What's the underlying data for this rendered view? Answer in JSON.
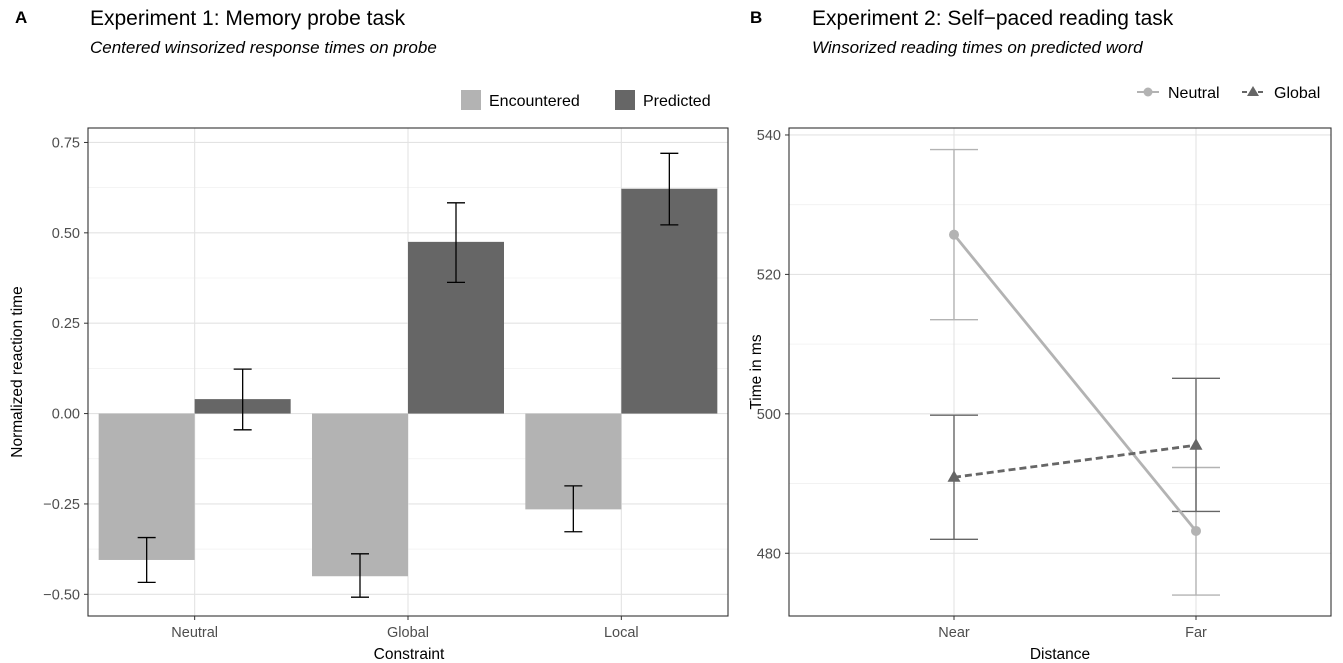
{
  "chart_data": [
    {
      "panel": "A",
      "type": "bar",
      "title": "Experiment 1: Memory probe task",
      "subtitle": "Centered winsorized response times on probe",
      "xlabel": "Constraint",
      "ylabel": "Normalized reaction time",
      "categories": [
        "Neutral",
        "Global",
        "Local"
      ],
      "ylim": [
        -0.56,
        0.79
      ],
      "yticks": [
        -0.5,
        -0.25,
        0.0,
        0.25,
        0.5,
        0.75
      ],
      "ytick_labels": [
        "−0.50",
        "−0.25",
        "0.00",
        "0.25",
        "0.50",
        "0.75"
      ],
      "grid": true,
      "legend_position": "top-right",
      "series": [
        {
          "name": "Encountered",
          "color": "#b3b3b3",
          "values": [
            -0.405,
            -0.45,
            -0.265
          ],
          "err_low": [
            -0.467,
            -0.508,
            -0.327
          ],
          "err_high": [
            -0.343,
            -0.388,
            -0.2
          ]
        },
        {
          "name": "Predicted",
          "color": "#666666",
          "values": [
            0.04,
            0.475,
            0.622
          ],
          "err_low": [
            -0.045,
            0.363,
            0.522
          ],
          "err_high": [
            0.123,
            0.583,
            0.72
          ]
        }
      ]
    },
    {
      "panel": "B",
      "type": "line",
      "title": "Experiment 2: Self−paced reading task",
      "subtitle": "Winsorized reading times on predicted word",
      "xlabel": "Distance",
      "ylabel": "Time in ms",
      "categories": [
        "Near",
        "Far"
      ],
      "ylim": [
        471,
        541
      ],
      "yticks": [
        480,
        500,
        520,
        540
      ],
      "ytick_labels": [
        "480",
        "500",
        "520",
        "540"
      ],
      "grid": true,
      "legend_position": "top-right",
      "series": [
        {
          "name": "Neutral",
          "marker": "circle",
          "linestyle": "solid",
          "color": "#b3b3b3",
          "values": [
            525.7,
            483.2
          ],
          "err_low": [
            513.5,
            474.0
          ],
          "err_high": [
            537.9,
            492.3
          ]
        },
        {
          "name": "Global",
          "marker": "triangle",
          "linestyle": "dashed",
          "color": "#666666",
          "values": [
            490.9,
            495.5
          ],
          "err_low": [
            482.0,
            486.0
          ],
          "err_high": [
            499.8,
            505.1
          ]
        }
      ]
    }
  ]
}
